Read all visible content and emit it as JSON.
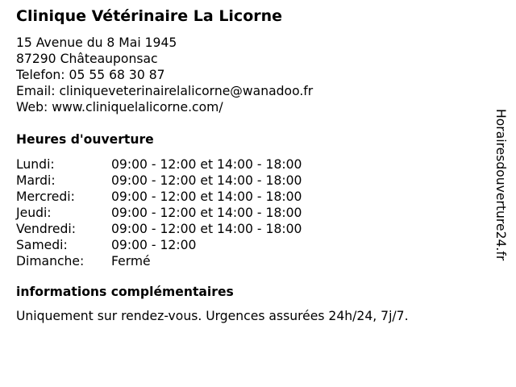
{
  "title": "Clinique Vétérinaire La Licorne",
  "contact": {
    "address": "15 Avenue du 8 Mai 1945",
    "city": "87290 Châteauponsac",
    "phone": "Telefon: 05 55 68 30 87",
    "email": "Email: cliniqueveterinairelalicorne@wanadoo.fr",
    "web": "Web: www.cliniquelalicorne.com/"
  },
  "hours_heading": "Heures d'ouverture",
  "hours": [
    {
      "day": "Lundi:",
      "time": "09:00 - 12:00 et 14:00 - 18:00"
    },
    {
      "day": "Mardi:",
      "time": "09:00 - 12:00 et 14:00 - 18:00"
    },
    {
      "day": "Mercredi:",
      "time": "09:00 - 12:00 et 14:00 - 18:00"
    },
    {
      "day": "Jeudi:",
      "time": "09:00 - 12:00 et 14:00 - 18:00"
    },
    {
      "day": "Vendredi:",
      "time": "09:00 - 12:00 et 14:00 - 18:00"
    },
    {
      "day": "Samedi:",
      "time": "09:00 - 12:00"
    },
    {
      "day": "Dimanche:",
      "time": "Fermé"
    }
  ],
  "info_heading": "informations complémentaires",
  "info_text": "Uniquement sur rendez-vous. Urgences assurées 24h/24, 7j/7.",
  "watermark": "Horairesdouverture24.fr"
}
